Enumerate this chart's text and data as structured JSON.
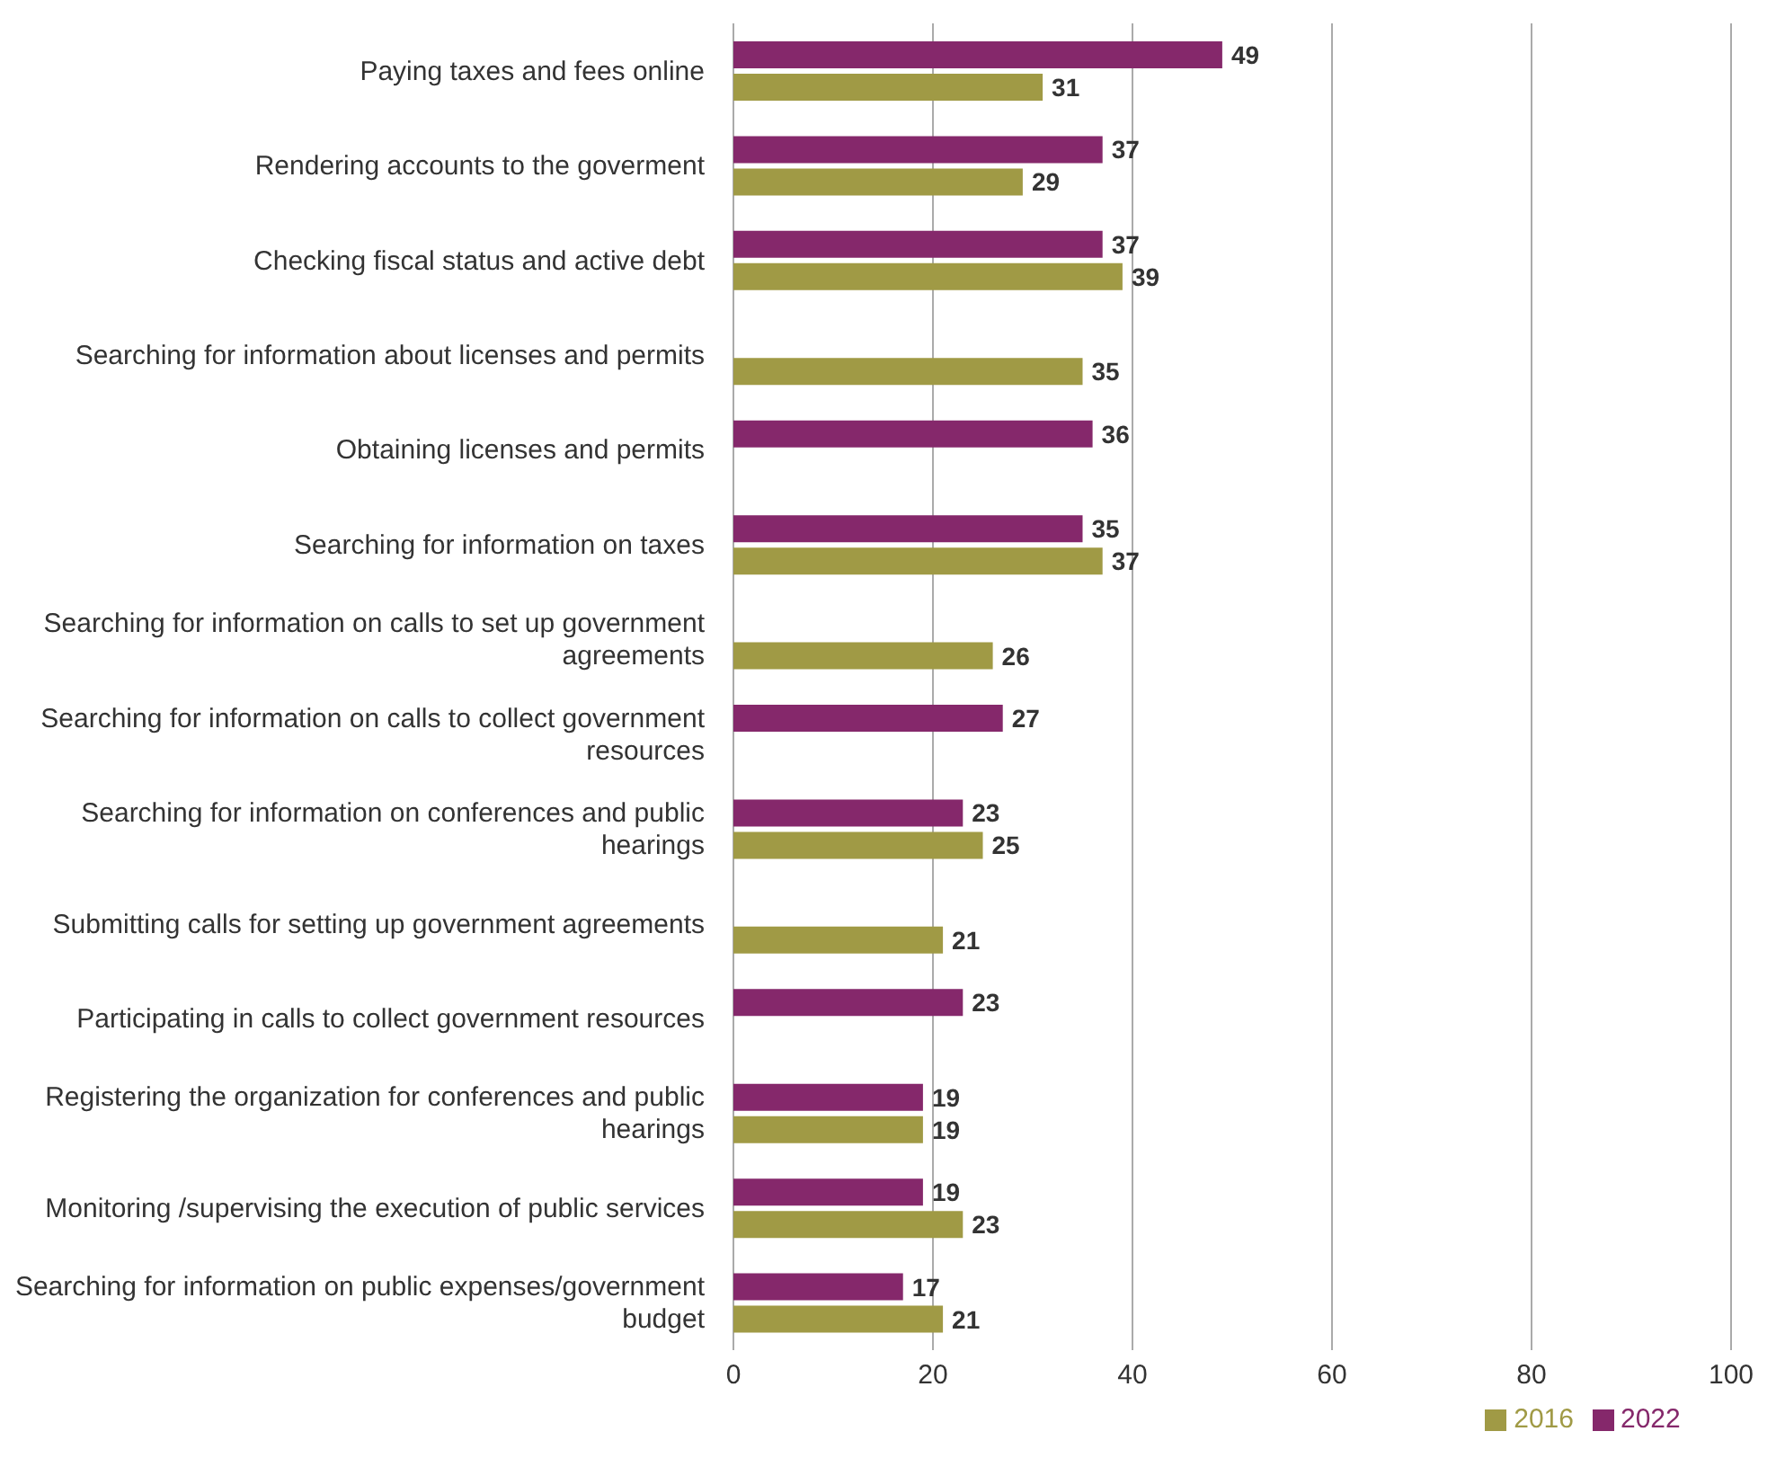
{
  "chart_data": {
    "type": "bar",
    "orientation": "horizontal",
    "categories": [
      "Paying taxes and fees online",
      "Rendering accounts to the goverment",
      "Checking fiscal status and active debt",
      "Searching for information about licenses and permits",
      "Obtaining licenses and permits",
      "Searching for information on taxes",
      "Searching for information on calls to set up government agreements",
      "Searching for information on calls to collect government resources",
      "Searching for information on conferences and public hearings",
      "Submitting calls for setting up government agreements",
      "Participating in calls to collect government resources",
      "Registering the organization for conferences and public hearings",
      "Monitoring /supervising the execution of public services",
      "Searching for information on public expenses/government budget"
    ],
    "series": [
      {
        "name": "2022",
        "color": "#85286b",
        "values": [
          49,
          37,
          37,
          null,
          36,
          35,
          null,
          27,
          23,
          null,
          23,
          19,
          19,
          17
        ]
      },
      {
        "name": "2016",
        "color": "#a09a45",
        "values": [
          31,
          29,
          39,
          35,
          null,
          37,
          26,
          null,
          25,
          21,
          null,
          19,
          23,
          21
        ]
      }
    ],
    "xlim": [
      0,
      100
    ],
    "xticks": [
      0,
      20,
      40,
      60,
      80,
      100
    ],
    "grid": "x",
    "legend": "bottom",
    "data_labels": true
  }
}
